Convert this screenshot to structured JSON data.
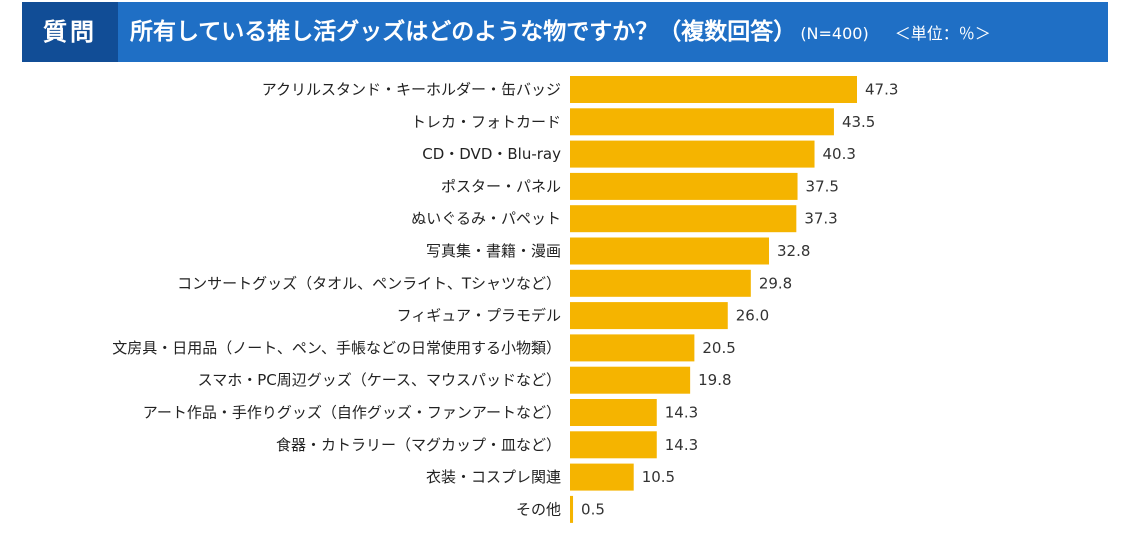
{
  "header": {
    "question_label": "質問",
    "question_text": "所有している推し活グッズはどのような物ですか？（複数回答）",
    "sample_size": "(N=400)",
    "unit": "＜単位：％＞"
  },
  "colors": {
    "bar": "#f5b400",
    "header": "#1f6fc5",
    "header_label": "#114d96"
  },
  "chart_data": {
    "type": "bar",
    "orientation": "horizontal",
    "title": "所有している推し活グッズはどのような物ですか？（複数回答）",
    "categories": [
      "アクリルスタンド・キーホルダー・缶バッジ",
      "トレカ・フォトカード",
      "CD・DVD・Blu-ray",
      "ポスター・パネル",
      "ぬいぐるみ・パペット",
      "写真集・書籍・漫画",
      "コンサートグッズ（タオル、ペンライト、Tシャツなど）",
      "フィギュア・プラモデル",
      "文房具・日用品（ノート、ペン、手帳などの日常使用する小物類）",
      "スマホ・PC周辺グッズ（ケース、マウスパッドなど）",
      "アート作品・手作りグッズ（自作グッズ・ファンアートなど）",
      "食器・カトラリー（マグカップ・皿など）",
      "衣装・コスプレ関連",
      "その他"
    ],
    "values": [
      47.3,
      43.5,
      40.3,
      37.5,
      37.3,
      32.8,
      29.8,
      26.0,
      20.5,
      19.8,
      14.3,
      14.3,
      10.5,
      0.5
    ],
    "value_labels": [
      "47.3",
      "43.5",
      "40.3",
      "37.5",
      "37.3",
      "32.8",
      "29.8",
      "26.0",
      "20.5",
      "19.8",
      "14.3",
      "14.3",
      "10.5",
      "0.5"
    ],
    "xlim": [
      0,
      50
    ],
    "grid": false,
    "legend": "none"
  }
}
